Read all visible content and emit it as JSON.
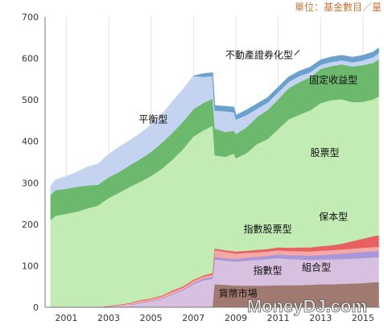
{
  "chart_data": {
    "type": "area",
    "stacked": true,
    "unit_label": "單位：基金數目／量",
    "watermark": "MoneyDJ.com",
    "x_tick_labels": [
      "2001",
      "2003",
      "2005",
      "2007",
      "2009",
      "2011",
      "2013",
      "2015"
    ],
    "y_tick_labels": [
      "0",
      "100",
      "200",
      "300",
      "400",
      "500",
      "600",
      "700"
    ],
    "xlim": [
      2000.0,
      2015.8
    ],
    "ylim": [
      0,
      700
    ],
    "grid": "vertical",
    "x": [
      2000.25,
      2000.5,
      2001,
      2001.5,
      2002,
      2002.5,
      2003,
      2003.5,
      2004,
      2004.5,
      2005,
      2005.5,
      2006,
      2006.5,
      2007,
      2007.5,
      2007.9,
      2008.0,
      2008.5,
      2008.9,
      2009.0,
      2009.5,
      2010,
      2010.5,
      2011,
      2011.5,
      2012,
      2012.5,
      2013,
      2013.5,
      2014,
      2014.5,
      2015,
      2015.5,
      2015.75
    ],
    "series": [
      {
        "name": "貨幣市場",
        "color": "#a07a70",
        "values": [
          0,
          0,
          0,
          0,
          0,
          0,
          0,
          0,
          0,
          0,
          0,
          0,
          0,
          0,
          0,
          0,
          0,
          55,
          54,
          52,
          52,
          52,
          52,
          52,
          53,
          53,
          53,
          54,
          55,
          55,
          56,
          57,
          58,
          60,
          60
        ]
      },
      {
        "name": "組合型",
        "color": "#d8c0e0",
        "values": [
          0,
          0,
          0,
          0,
          0,
          0,
          1,
          3,
          6,
          10,
          14,
          20,
          30,
          40,
          55,
          65,
          68,
          60,
          58,
          58,
          58,
          60,
          62,
          64,
          65,
          63,
          62,
          60,
          60,
          60,
          60,
          60,
          60,
          60,
          60
        ]
      },
      {
        "name": "指數型",
        "color": "#a898d8",
        "values": [
          0,
          0,
          0,
          0,
          0,
          0,
          0,
          0,
          0,
          1,
          1,
          1,
          2,
          2,
          3,
          4,
          5,
          6,
          6,
          6,
          6,
          7,
          7,
          8,
          9,
          9,
          10,
          10,
          11,
          12,
          13,
          14,
          15,
          15,
          15
        ]
      },
      {
        "name": "保本型",
        "color": "#f4a8a8",
        "values": [
          0,
          0,
          0,
          0,
          0,
          0,
          1,
          2,
          3,
          4,
          4,
          5,
          5,
          5,
          5,
          5,
          5,
          16,
          15,
          14,
          13,
          12,
          11,
          10,
          10,
          10,
          10,
          10,
          10,
          10,
          10,
          10,
          10,
          10,
          10
        ]
      },
      {
        "name": "指數股票型",
        "color": "#e86060",
        "values": [
          0,
          0,
          0,
          0,
          0,
          0,
          1,
          1,
          1,
          2,
          2,
          2,
          3,
          3,
          3,
          3,
          4,
          4,
          4,
          5,
          5,
          5,
          6,
          6,
          7,
          8,
          9,
          10,
          11,
          12,
          14,
          18,
          22,
          26,
          28
        ]
      },
      {
        "name": "股票型",
        "color": "#c2ecb4",
        "values": [
          210,
          220,
          225,
          230,
          238,
          245,
          260,
          270,
          280,
          285,
          295,
          305,
          315,
          330,
          345,
          350,
          355,
          225,
          225,
          235,
          225,
          235,
          255,
          265,
          285,
          310,
          320,
          330,
          345,
          350,
          348,
          335,
          330,
          330,
          335
        ]
      },
      {
        "name": "固定收益型",
        "color": "#6cb86c",
        "values": [
          60,
          62,
          60,
          60,
          55,
          50,
          50,
          50,
          52,
          55,
          58,
          62,
          65,
          66,
          66,
          66,
          65,
          65,
          60,
          55,
          58,
          62,
          65,
          70,
          72,
          75,
          78,
          80,
          82,
          82,
          84,
          86,
          88,
          88,
          90
        ]
      },
      {
        "name": "平衡型",
        "color": "#c4d4f0",
        "values": [
          20,
          25,
          30,
          35,
          45,
          50,
          55,
          60,
          60,
          62,
          65,
          68,
          75,
          78,
          80,
          62,
          55,
          43,
          50,
          45,
          35,
          30,
          20,
          18,
          17,
          15,
          15,
          12,
          10,
          10,
          10,
          10,
          12,
          14,
          15
        ]
      },
      {
        "name": "不動產證券化型",
        "color": "#6aa0cc",
        "values": [
          0,
          0,
          0,
          0,
          0,
          0,
          0,
          0,
          0,
          0,
          0,
          0,
          0,
          0,
          0,
          8,
          8,
          12,
          12,
          12,
          10,
          12,
          12,
          12,
          12,
          12,
          12,
          12,
          12,
          12,
          12,
          12,
          12,
          12,
          12
        ]
      }
    ],
    "annotations": [
      {
        "text": "不動產證券化型",
        "x": 2010.1,
        "y": 600,
        "series": "不動產證券化型"
      },
      {
        "text": "固定收益型",
        "x": 2013.6,
        "y": 540,
        "series": "固定收益型"
      },
      {
        "text": "平衡型",
        "x": 2005.1,
        "y": 445,
        "series": "平衡型"
      },
      {
        "text": "股票型",
        "x": 2013.2,
        "y": 365,
        "series": "股票型"
      },
      {
        "text": "保本型",
        "x": 2013.6,
        "y": 210,
        "series": "保本型"
      },
      {
        "text": "指數股票型",
        "x": 2010.5,
        "y": 180,
        "series": "指數股票型"
      },
      {
        "text": "指數型",
        "x": 2010.5,
        "y": 80,
        "series": "指數型"
      },
      {
        "text": "組合型",
        "x": 2012.8,
        "y": 88,
        "series": "組合型"
      },
      {
        "text": "貨幣市場",
        "x": 2009.1,
        "y": 25,
        "series": "貨幣市場"
      }
    ]
  }
}
